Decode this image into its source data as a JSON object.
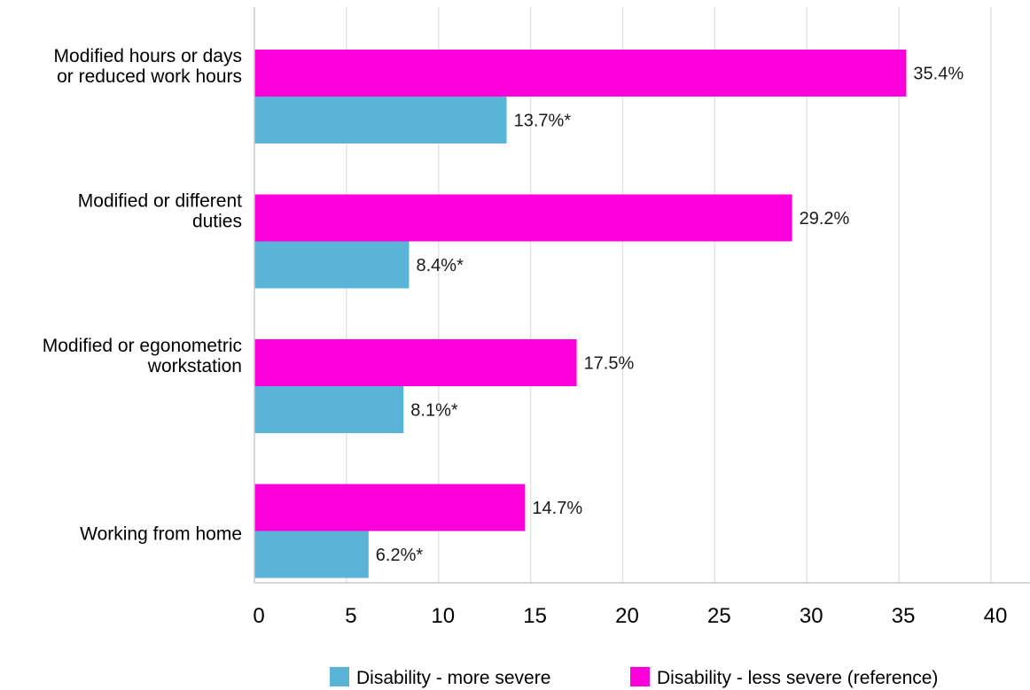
{
  "chart_data": {
    "type": "bar",
    "orientation": "horizontal",
    "categories": [
      [
        "Modified hours or days",
        "or reduced work hours"
      ],
      [
        "Modified or different",
        "duties"
      ],
      [
        "Modified or egonometric",
        "workstation"
      ],
      [
        "Working from home"
      ]
    ],
    "series": [
      {
        "name": "Disability - less severe (reference)",
        "color": "#ff00dc",
        "values": [
          35.4,
          29.2,
          17.5,
          14.7
        ],
        "labels": [
          "35.4%",
          "29.2%",
          "17.5%",
          "14.7%"
        ]
      },
      {
        "name": "Disability - more severe",
        "color": "#5ab4d8",
        "values": [
          13.7,
          8.4,
          8.1,
          6.2
        ],
        "labels": [
          "13.7%*",
          "8.4%*",
          "8.1%*",
          "6.2%*"
        ]
      }
    ],
    "xlim": [
      0,
      40
    ],
    "xticks": [
      "0",
      "5",
      "10",
      "15",
      "20",
      "25",
      "30",
      "35",
      "40"
    ],
    "grid": true,
    "legend": {
      "position": "bottom",
      "order": [
        "Disability - more severe",
        "Disability - less severe (reference)"
      ]
    }
  }
}
